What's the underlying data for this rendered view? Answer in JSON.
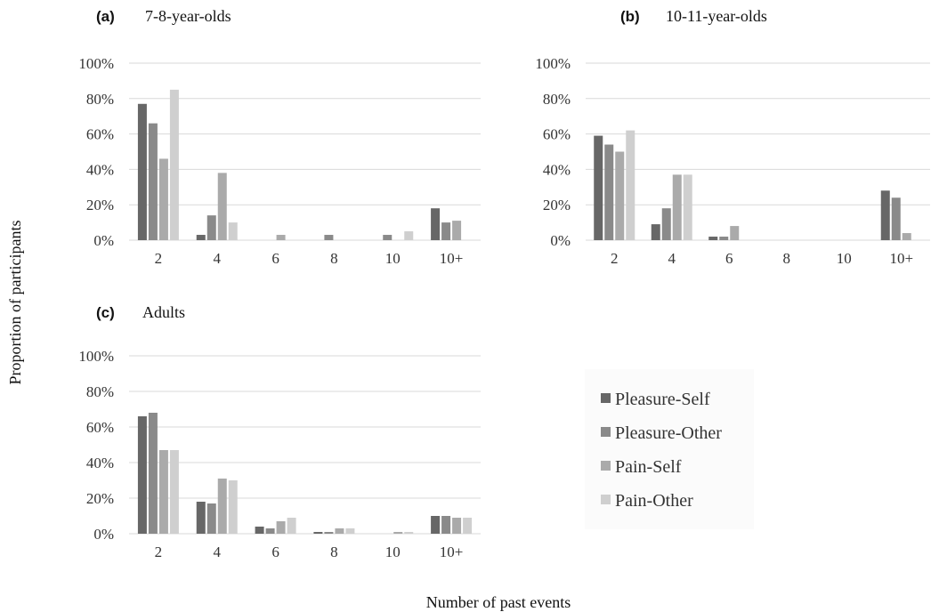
{
  "figure": {
    "ylabel": "Proportion of participants",
    "xlabel": "Number of past events"
  },
  "legend": {
    "items": [
      {
        "label": "Pleasure-Self",
        "color": "#676767"
      },
      {
        "label": "Pleasure-Other",
        "color": "#8a8a8a"
      },
      {
        "label": "Pain-Self",
        "color": "#aaaaaa"
      },
      {
        "label": "Pain-Other",
        "color": "#cfcfcf"
      }
    ]
  },
  "colors": {
    "Pleasure-Self": "#676767",
    "Pleasure-Other": "#8a8a8a",
    "Pain-Self": "#aaaaaa",
    "Pain-Other": "#cfcfcf",
    "gridline": "#d9d9d9"
  },
  "chart_data": [
    {
      "type": "bar",
      "panel_label": "(a)",
      "title": "7-8-year-olds",
      "categories": [
        "2",
        "4",
        "6",
        "8",
        "10",
        "10+"
      ],
      "yticks": [
        "0%",
        "20%",
        "40%",
        "60%",
        "80%",
        "100%"
      ],
      "ylim": [
        0,
        100
      ],
      "grid": true,
      "series": [
        {
          "name": "Pleasure-Self",
          "values": [
            77,
            3,
            0,
            0,
            0,
            18
          ]
        },
        {
          "name": "Pleasure-Other",
          "values": [
            66,
            14,
            0,
            3,
            3,
            10
          ]
        },
        {
          "name": "Pain-Self",
          "values": [
            46,
            38,
            3,
            0,
            0,
            11
          ]
        },
        {
          "name": "Pain-Other",
          "values": [
            85,
            10,
            0,
            0,
            5,
            0
          ]
        }
      ]
    },
    {
      "type": "bar",
      "panel_label": "(b)",
      "title": "10-11-year-olds",
      "categories": [
        "2",
        "4",
        "6",
        "8",
        "10",
        "10+"
      ],
      "yticks": [
        "0%",
        "20%",
        "40%",
        "60%",
        "80%",
        "100%"
      ],
      "ylim": [
        0,
        100
      ],
      "grid": true,
      "series": [
        {
          "name": "Pleasure-Self",
          "values": [
            59,
            9,
            2,
            0,
            0,
            28
          ]
        },
        {
          "name": "Pleasure-Other",
          "values": [
            54,
            18,
            2,
            0,
            0,
            24
          ]
        },
        {
          "name": "Pain-Self",
          "values": [
            50,
            37,
            8,
            0,
            0,
            4
          ]
        },
        {
          "name": "Pain-Other",
          "values": [
            62,
            37,
            0,
            0,
            0,
            0
          ]
        }
      ]
    },
    {
      "type": "bar",
      "panel_label": "(c)",
      "title": "Adults",
      "categories": [
        "2",
        "4",
        "6",
        "8",
        "10",
        "10+"
      ],
      "yticks": [
        "0%",
        "20%",
        "40%",
        "60%",
        "80%",
        "100%"
      ],
      "ylim": [
        0,
        100
      ],
      "grid": true,
      "legend_position": "right",
      "series": [
        {
          "name": "Pleasure-Self",
          "values": [
            66,
            18,
            4,
            1,
            0,
            10
          ]
        },
        {
          "name": "Pleasure-Other",
          "values": [
            68,
            17,
            3,
            1,
            0,
            10
          ]
        },
        {
          "name": "Pain-Self",
          "values": [
            47,
            31,
            7,
            3,
            1,
            9
          ]
        },
        {
          "name": "Pain-Other",
          "values": [
            47,
            30,
            9,
            3,
            1,
            9
          ]
        }
      ]
    }
  ]
}
